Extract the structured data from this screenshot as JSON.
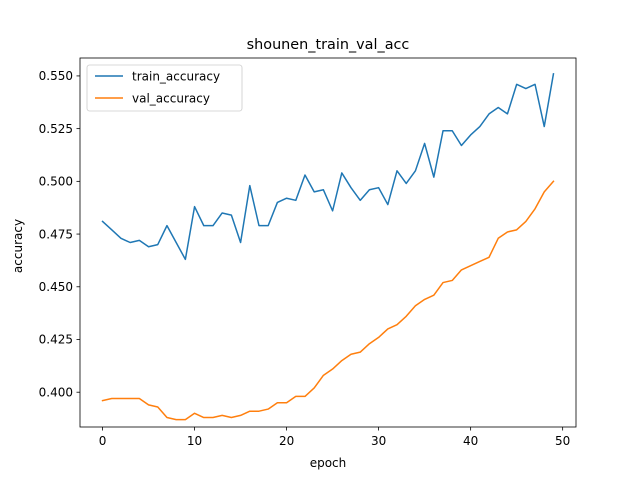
{
  "chart_data": {
    "type": "line",
    "title": "shounen_train_val_acc",
    "xlabel": "epoch",
    "ylabel": "accuracy",
    "xlim": [
      -2.45,
      51.45
    ],
    "ylim": [
      0.3835,
      0.5585
    ],
    "xticks": [
      0,
      10,
      20,
      30,
      40,
      50
    ],
    "xtick_labels": [
      "0",
      "10",
      "20",
      "30",
      "40",
      "50"
    ],
    "yticks": [
      0.4,
      0.425,
      0.45,
      0.475,
      0.5,
      0.525,
      0.55
    ],
    "ytick_labels": [
      "0.400",
      "0.425",
      "0.450",
      "0.475",
      "0.500",
      "0.525",
      "0.550"
    ],
    "grid": false,
    "legend_position": "upper left",
    "x": [
      0,
      1,
      2,
      3,
      4,
      5,
      6,
      7,
      8,
      9,
      10,
      11,
      12,
      13,
      14,
      15,
      16,
      17,
      18,
      19,
      20,
      21,
      22,
      23,
      24,
      25,
      26,
      27,
      28,
      29,
      30,
      31,
      32,
      33,
      34,
      35,
      36,
      37,
      38,
      39,
      40,
      41,
      42,
      43,
      44,
      45,
      46,
      47,
      48,
      49
    ],
    "series": [
      {
        "name": "train_accuracy",
        "color": "#1f77b4",
        "values": [
          0.481,
          0.477,
          0.473,
          0.471,
          0.472,
          0.469,
          0.47,
          0.479,
          0.471,
          0.463,
          0.488,
          0.479,
          0.479,
          0.485,
          0.484,
          0.471,
          0.498,
          0.479,
          0.479,
          0.49,
          0.492,
          0.491,
          0.503,
          0.495,
          0.496,
          0.486,
          0.504,
          0.497,
          0.491,
          0.496,
          0.497,
          0.489,
          0.505,
          0.499,
          0.505,
          0.518,
          0.502,
          0.524,
          0.524,
          0.517,
          0.522,
          0.526,
          0.532,
          0.535,
          0.532,
          0.546,
          0.544,
          0.546,
          0.526,
          0.551
        ]
      },
      {
        "name": "val_accuracy",
        "color": "#ff7f0e",
        "values": [
          0.396,
          0.397,
          0.397,
          0.397,
          0.397,
          0.394,
          0.393,
          0.388,
          0.387,
          0.387,
          0.39,
          0.388,
          0.388,
          0.389,
          0.388,
          0.389,
          0.391,
          0.391,
          0.392,
          0.395,
          0.395,
          0.398,
          0.398,
          0.402,
          0.408,
          0.411,
          0.415,
          0.418,
          0.419,
          0.423,
          0.426,
          0.43,
          0.432,
          0.436,
          0.441,
          0.444,
          0.446,
          0.452,
          0.453,
          0.458,
          0.46,
          0.462,
          0.464,
          0.473,
          0.476,
          0.477,
          0.481,
          0.487,
          0.495,
          0.5
        ]
      }
    ]
  }
}
